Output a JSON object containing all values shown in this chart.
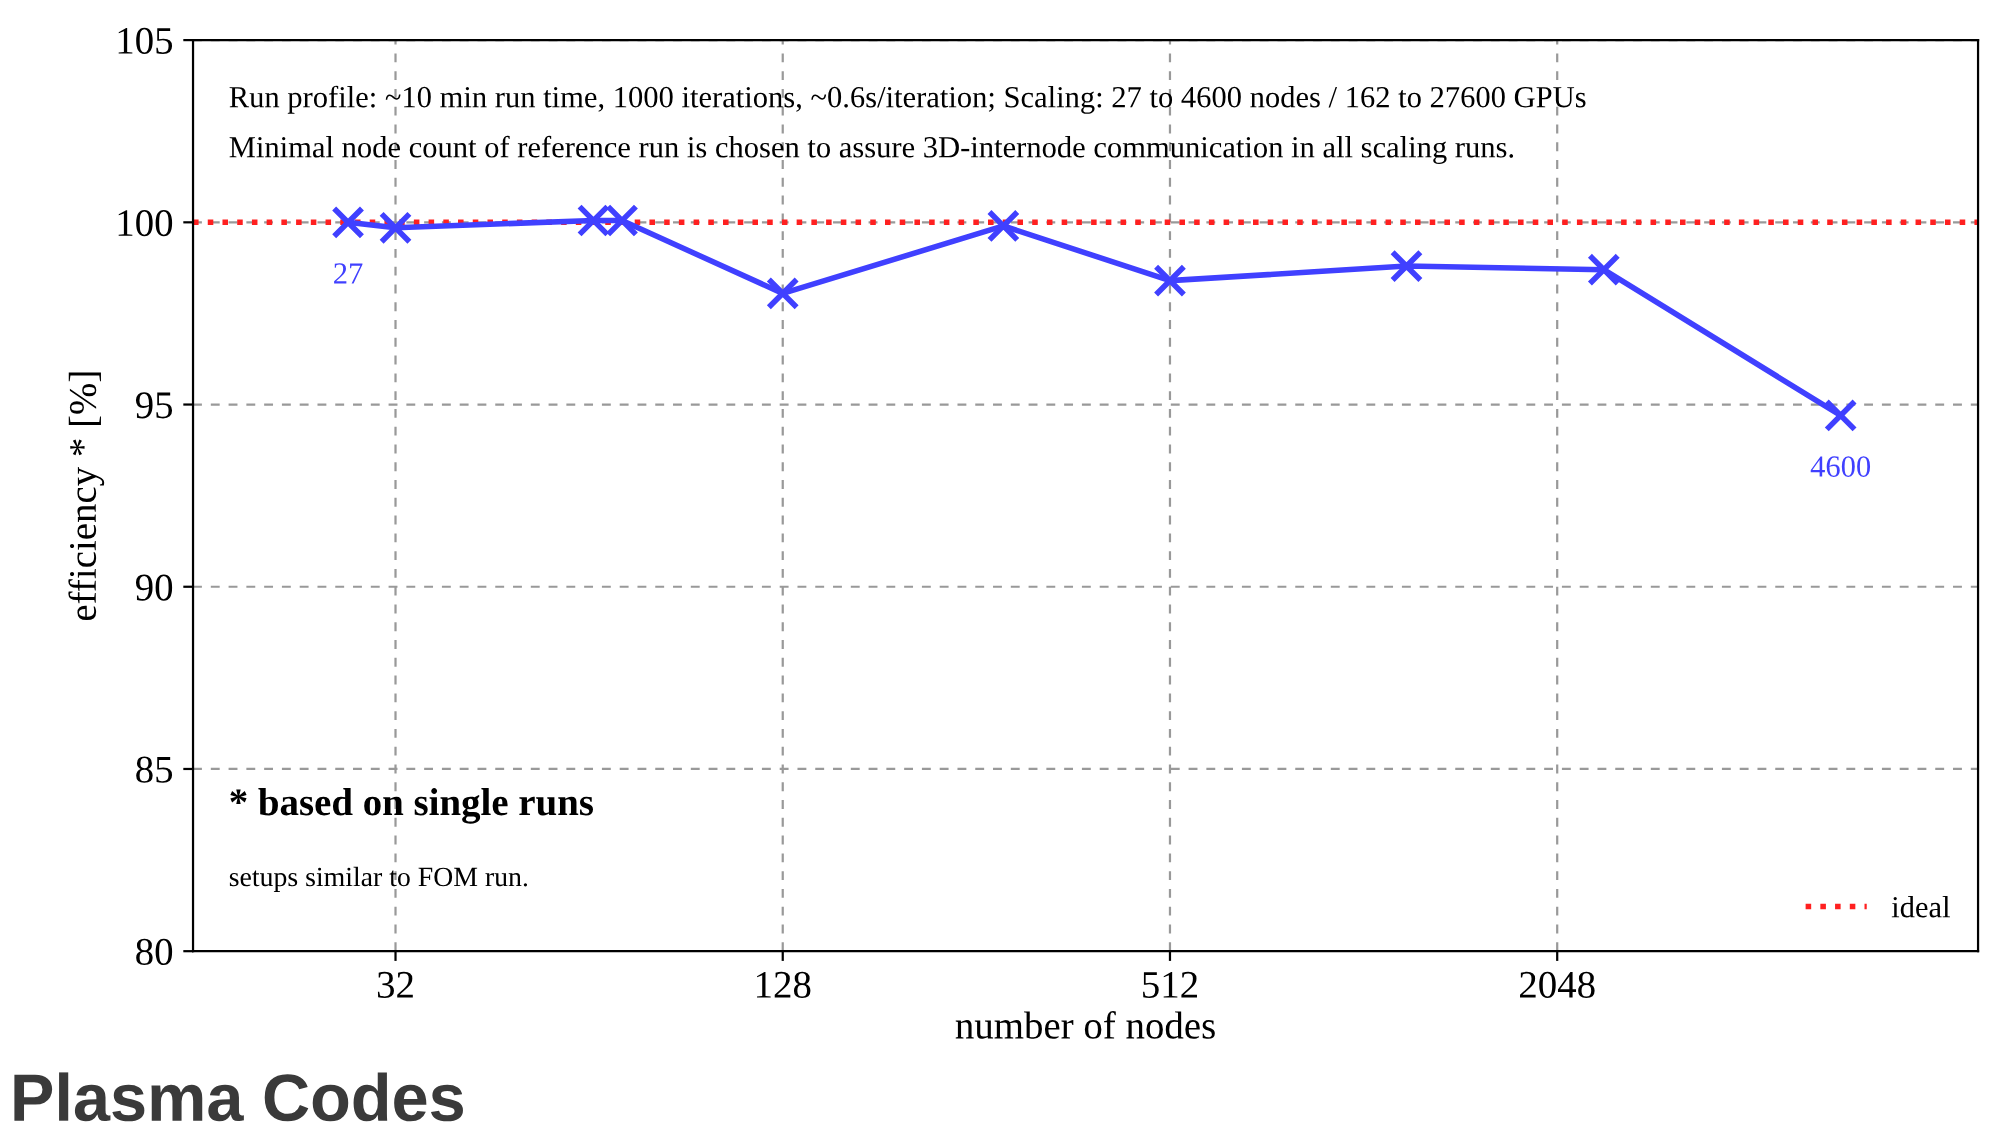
{
  "chart_data": {
    "type": "line",
    "xlabel": "number of nodes",
    "ylabel": "efficiency * [%]",
    "x": [
      27,
      32,
      65,
      72,
      128,
      282,
      512,
      1194,
      2420,
      5650
    ],
    "series": [
      {
        "color": "#4040ff",
        "values": [
          100.0,
          99.85,
          100.05,
          100.05,
          98.05,
          99.9,
          98.4,
          98.8,
          98.7,
          94.7
        ]
      }
    ],
    "log": "x",
    "xlim": [
      15.5,
      9240
    ],
    "xticks": [
      32,
      128,
      512,
      2048
    ],
    "ylim": [
      80,
      105
    ],
    "yticks": [
      80,
      85,
      90,
      95,
      100,
      105
    ],
    "grid": true,
    "marker": "cross",
    "line_style": "solid",
    "legend": "bottom right",
    "ref_lines": [
      {
        "axis": "y",
        "value": 100,
        "label": "ideal",
        "color": "#ff2020",
        "line_style": "dotted"
      }
    ],
    "annotations": [
      "Run profile: ~10 min run time, 1000 iterations, ~0.6s/iteration; Scaling: 27 to 4600 nodes / 162 to 27600 GPUs",
      "Minimal node count of reference run is chosen to assure 3D-internode communication in all scaling runs.",
      {
        "text": "27",
        "x": 27,
        "y": 100.0
      },
      {
        "text": "4600",
        "x": 5650,
        "y": 94.7
      },
      "* based on single runs",
      "setups similar to FOM run.",
      "Plasma Codes"
    ]
  }
}
